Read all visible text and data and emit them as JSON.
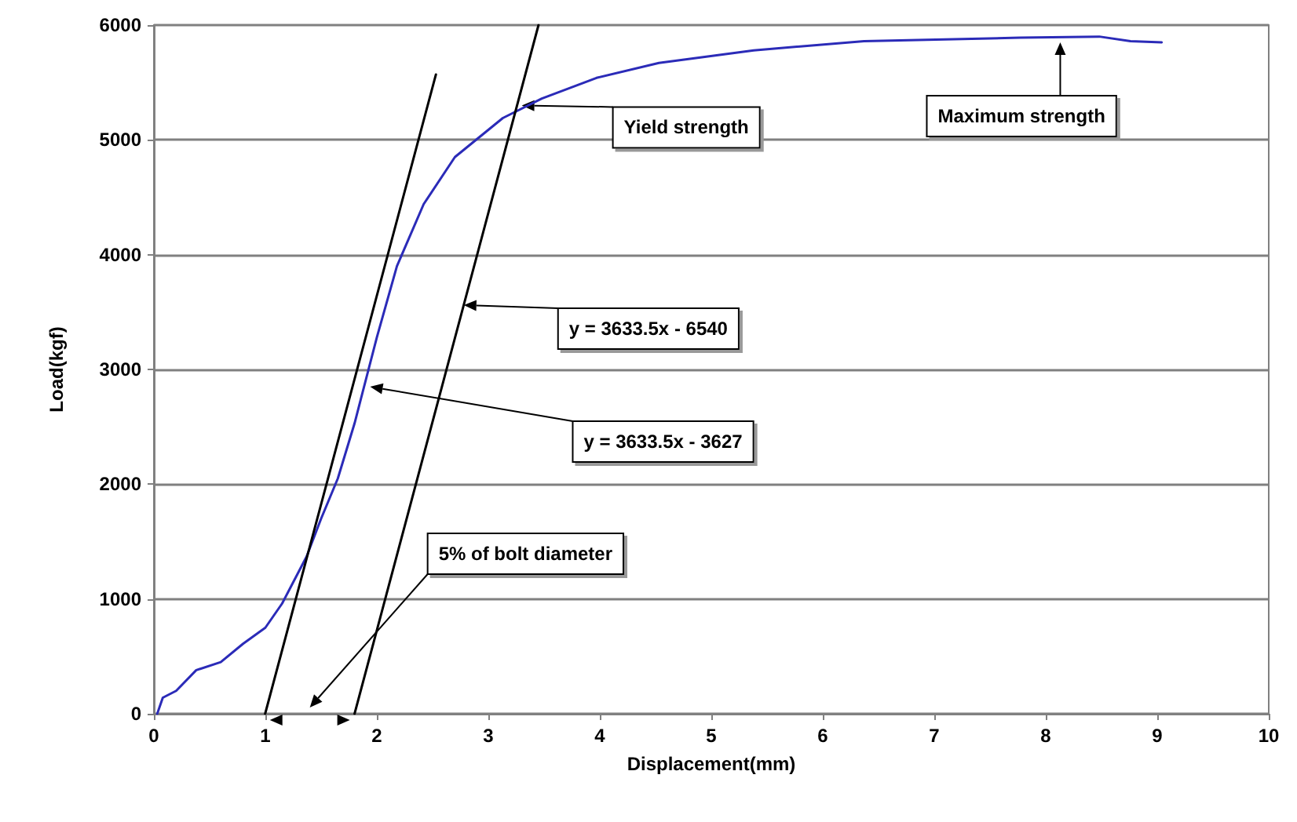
{
  "chart_data": {
    "type": "line",
    "xlabel": "Displacement(mm)",
    "ylabel": "Load(kgf)",
    "xlim": [
      0,
      10
    ],
    "xticks": [
      0,
      1,
      2,
      3,
      4,
      5,
      6,
      7,
      8,
      9,
      10
    ],
    "ylim": [
      0,
      6000
    ],
    "yticks": [
      0,
      1000,
      2000,
      3000,
      4000,
      5000,
      6000
    ],
    "grid": "y",
    "marker": "none",
    "line_style": "solid",
    "series": [
      {
        "color": "#2b2bb8",
        "x": [
          0.03,
          0.08,
          0.2,
          0.38,
          0.6,
          0.8,
          1.0,
          1.15,
          1.37,
          1.5,
          1.65,
          1.8,
          2.0,
          2.18,
          2.42,
          2.7,
          3.13,
          3.48,
          3.97,
          4.53,
          5.38,
          6.37,
          7.77,
          8.48,
          8.76,
          9.04
        ],
        "values": [
          0,
          140,
          200,
          380,
          450,
          610,
          750,
          960,
          1370,
          1700,
          2050,
          2530,
          3280,
          3900,
          4440,
          4850,
          5190,
          5360,
          5540,
          5670,
          5780,
          5860,
          5890,
          5900,
          5860,
          5850
        ]
      },
      {
        "color": "#000000",
        "x": [
          0.998,
          2.53
        ],
        "values": [
          0,
          5570
        ]
      },
      {
        "color": "#000000",
        "x": [
          1.8,
          3.45
        ],
        "values": [
          0,
          6000
        ]
      }
    ],
    "annotations": [
      {
        "text": "Yield strength",
        "x": 3.3,
        "y": 5300
      },
      {
        "text": "Maximum strength",
        "x": 8.13,
        "y": 5850
      },
      {
        "text": "y = 3633.5x - 6540",
        "x": 2.78,
        "y": 3560
      },
      {
        "text": "y = 3633.5x - 3627",
        "x": 1.94,
        "y": 2850
      },
      "5% of bolt diameter"
    ]
  }
}
